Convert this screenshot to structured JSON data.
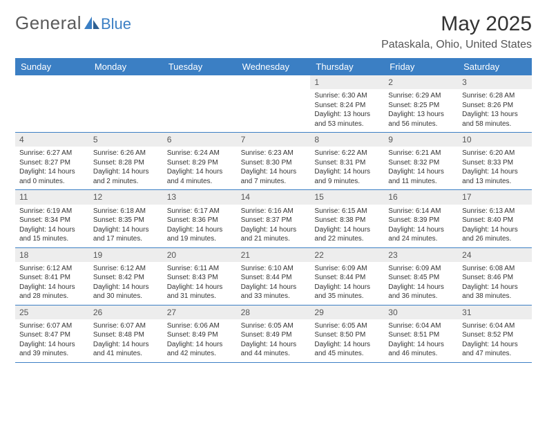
{
  "logo": {
    "general": "General",
    "blue": "Blue"
  },
  "title": "May 2025",
  "location": "Pataskala, Ohio, United States",
  "colors": {
    "header_bg": "#3b7fc4",
    "header_text": "#ffffff",
    "daynum_bg": "#ededed",
    "text": "#333333",
    "logo_gray": "#5a5a5a",
    "logo_blue": "#3b7fc4",
    "week_border": "#3b7fc4"
  },
  "day_names": [
    "Sunday",
    "Monday",
    "Tuesday",
    "Wednesday",
    "Thursday",
    "Friday",
    "Saturday"
  ],
  "weeks": [
    [
      {
        "n": "",
        "sr": "",
        "ss": "",
        "dl": ""
      },
      {
        "n": "",
        "sr": "",
        "ss": "",
        "dl": ""
      },
      {
        "n": "",
        "sr": "",
        "ss": "",
        "dl": ""
      },
      {
        "n": "",
        "sr": "",
        "ss": "",
        "dl": ""
      },
      {
        "n": "1",
        "sr": "Sunrise: 6:30 AM",
        "ss": "Sunset: 8:24 PM",
        "dl": "Daylight: 13 hours and 53 minutes."
      },
      {
        "n": "2",
        "sr": "Sunrise: 6:29 AM",
        "ss": "Sunset: 8:25 PM",
        "dl": "Daylight: 13 hours and 56 minutes."
      },
      {
        "n": "3",
        "sr": "Sunrise: 6:28 AM",
        "ss": "Sunset: 8:26 PM",
        "dl": "Daylight: 13 hours and 58 minutes."
      }
    ],
    [
      {
        "n": "4",
        "sr": "Sunrise: 6:27 AM",
        "ss": "Sunset: 8:27 PM",
        "dl": "Daylight: 14 hours and 0 minutes."
      },
      {
        "n": "5",
        "sr": "Sunrise: 6:26 AM",
        "ss": "Sunset: 8:28 PM",
        "dl": "Daylight: 14 hours and 2 minutes."
      },
      {
        "n": "6",
        "sr": "Sunrise: 6:24 AM",
        "ss": "Sunset: 8:29 PM",
        "dl": "Daylight: 14 hours and 4 minutes."
      },
      {
        "n": "7",
        "sr": "Sunrise: 6:23 AM",
        "ss": "Sunset: 8:30 PM",
        "dl": "Daylight: 14 hours and 7 minutes."
      },
      {
        "n": "8",
        "sr": "Sunrise: 6:22 AM",
        "ss": "Sunset: 8:31 PM",
        "dl": "Daylight: 14 hours and 9 minutes."
      },
      {
        "n": "9",
        "sr": "Sunrise: 6:21 AM",
        "ss": "Sunset: 8:32 PM",
        "dl": "Daylight: 14 hours and 11 minutes."
      },
      {
        "n": "10",
        "sr": "Sunrise: 6:20 AM",
        "ss": "Sunset: 8:33 PM",
        "dl": "Daylight: 14 hours and 13 minutes."
      }
    ],
    [
      {
        "n": "11",
        "sr": "Sunrise: 6:19 AM",
        "ss": "Sunset: 8:34 PM",
        "dl": "Daylight: 14 hours and 15 minutes."
      },
      {
        "n": "12",
        "sr": "Sunrise: 6:18 AM",
        "ss": "Sunset: 8:35 PM",
        "dl": "Daylight: 14 hours and 17 minutes."
      },
      {
        "n": "13",
        "sr": "Sunrise: 6:17 AM",
        "ss": "Sunset: 8:36 PM",
        "dl": "Daylight: 14 hours and 19 minutes."
      },
      {
        "n": "14",
        "sr": "Sunrise: 6:16 AM",
        "ss": "Sunset: 8:37 PM",
        "dl": "Daylight: 14 hours and 21 minutes."
      },
      {
        "n": "15",
        "sr": "Sunrise: 6:15 AM",
        "ss": "Sunset: 8:38 PM",
        "dl": "Daylight: 14 hours and 22 minutes."
      },
      {
        "n": "16",
        "sr": "Sunrise: 6:14 AM",
        "ss": "Sunset: 8:39 PM",
        "dl": "Daylight: 14 hours and 24 minutes."
      },
      {
        "n": "17",
        "sr": "Sunrise: 6:13 AM",
        "ss": "Sunset: 8:40 PM",
        "dl": "Daylight: 14 hours and 26 minutes."
      }
    ],
    [
      {
        "n": "18",
        "sr": "Sunrise: 6:12 AM",
        "ss": "Sunset: 8:41 PM",
        "dl": "Daylight: 14 hours and 28 minutes."
      },
      {
        "n": "19",
        "sr": "Sunrise: 6:12 AM",
        "ss": "Sunset: 8:42 PM",
        "dl": "Daylight: 14 hours and 30 minutes."
      },
      {
        "n": "20",
        "sr": "Sunrise: 6:11 AM",
        "ss": "Sunset: 8:43 PM",
        "dl": "Daylight: 14 hours and 31 minutes."
      },
      {
        "n": "21",
        "sr": "Sunrise: 6:10 AM",
        "ss": "Sunset: 8:44 PM",
        "dl": "Daylight: 14 hours and 33 minutes."
      },
      {
        "n": "22",
        "sr": "Sunrise: 6:09 AM",
        "ss": "Sunset: 8:44 PM",
        "dl": "Daylight: 14 hours and 35 minutes."
      },
      {
        "n": "23",
        "sr": "Sunrise: 6:09 AM",
        "ss": "Sunset: 8:45 PM",
        "dl": "Daylight: 14 hours and 36 minutes."
      },
      {
        "n": "24",
        "sr": "Sunrise: 6:08 AM",
        "ss": "Sunset: 8:46 PM",
        "dl": "Daylight: 14 hours and 38 minutes."
      }
    ],
    [
      {
        "n": "25",
        "sr": "Sunrise: 6:07 AM",
        "ss": "Sunset: 8:47 PM",
        "dl": "Daylight: 14 hours and 39 minutes."
      },
      {
        "n": "26",
        "sr": "Sunrise: 6:07 AM",
        "ss": "Sunset: 8:48 PM",
        "dl": "Daylight: 14 hours and 41 minutes."
      },
      {
        "n": "27",
        "sr": "Sunrise: 6:06 AM",
        "ss": "Sunset: 8:49 PM",
        "dl": "Daylight: 14 hours and 42 minutes."
      },
      {
        "n": "28",
        "sr": "Sunrise: 6:05 AM",
        "ss": "Sunset: 8:49 PM",
        "dl": "Daylight: 14 hours and 44 minutes."
      },
      {
        "n": "29",
        "sr": "Sunrise: 6:05 AM",
        "ss": "Sunset: 8:50 PM",
        "dl": "Daylight: 14 hours and 45 minutes."
      },
      {
        "n": "30",
        "sr": "Sunrise: 6:04 AM",
        "ss": "Sunset: 8:51 PM",
        "dl": "Daylight: 14 hours and 46 minutes."
      },
      {
        "n": "31",
        "sr": "Sunrise: 6:04 AM",
        "ss": "Sunset: 8:52 PM",
        "dl": "Daylight: 14 hours and 47 minutes."
      }
    ]
  ]
}
